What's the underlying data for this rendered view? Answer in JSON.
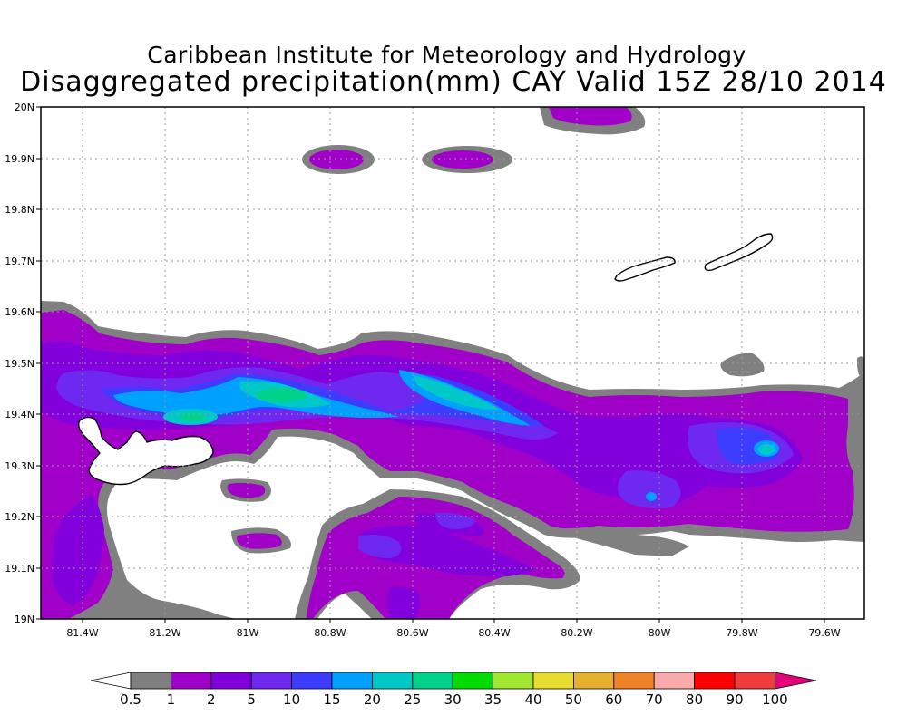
{
  "header": {
    "title_line1": "Caribbean Institute for Meteorology and Hydrology",
    "title_line2": "Disaggregated precipitation(mm) CAY Valid 15Z 28/10 2014"
  },
  "axes": {
    "lat_labels": [
      "20N",
      "19.9N",
      "19.8N",
      "19.7N",
      "19.6N",
      "19.5N",
      "19.4N",
      "19.3N",
      "19.2N",
      "19.1N",
      "19N"
    ],
    "lon_labels": [
      "81.4W",
      "81.2W",
      "81W",
      "80.8W",
      "80.6W",
      "80.4W",
      "80.2W",
      "80W",
      "79.8W",
      "79.6W"
    ]
  },
  "colorbar": {
    "labels": [
      "0.5",
      "1",
      "2",
      "5",
      "10",
      "15",
      "20",
      "25",
      "30",
      "35",
      "40",
      "50",
      "60",
      "70",
      "80",
      "90",
      "100"
    ],
    "colors": [
      "#ffffff",
      "#7f7f7f",
      "#a000c8",
      "#8200dc",
      "#6e28f0",
      "#3c3cff",
      "#00a0ff",
      "#00c8c8",
      "#00d28c",
      "#00dc00",
      "#a0e632",
      "#e6dc32",
      "#e6af2d",
      "#f08228",
      "#faaaaa",
      "#ff0000",
      "#f03c3c",
      "#e6007a"
    ]
  },
  "legend_colors": {
    "0.5-1": "#808080",
    "1-2": "#a000c8",
    "2-5": "#8200dc",
    "5-10": "#6e28f0",
    "10-15": "#3c3cff",
    "15-20": "#00a0ff",
    "20-25": "#00c8c8",
    "25-30": "#00d28c"
  }
}
